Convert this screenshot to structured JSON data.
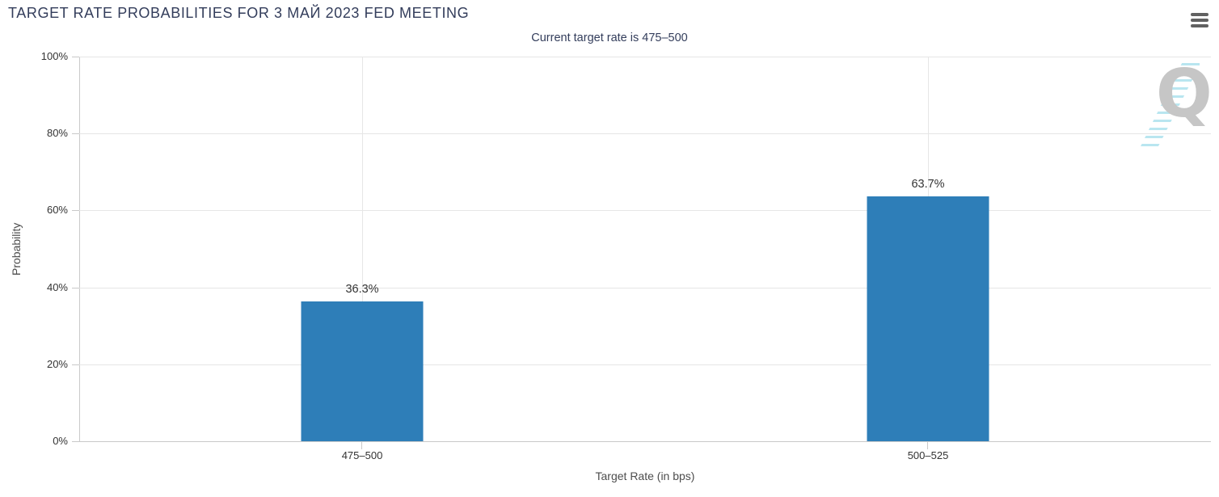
{
  "chart_data": {
    "type": "bar",
    "title": "TARGET RATE PROBABILITIES FOR 3 МАЙ 2023 FED MEETING",
    "subtitle": "Current target rate is 475–500",
    "categories": [
      "475–500",
      "500–525"
    ],
    "values": [
      36.3,
      63.7
    ],
    "data_labels": [
      "36.3%",
      "63.7%"
    ],
    "xlabel": "Target Rate (in bps)",
    "ylabel": "Probability",
    "ylim": [
      0,
      100
    ],
    "yticks": [
      0,
      20,
      40,
      60,
      80,
      100
    ],
    "ytick_labels_top_to_bottom": [
      "100%",
      "80%",
      "60%",
      "40%",
      "20%",
      "0%"
    ],
    "grid": true,
    "legend": "none",
    "bar_color": "#2e7eb8",
    "title_color": "#333d5b",
    "watermark_letter": "Q",
    "watermark_color": "#c6c6c6",
    "watermark_dash_color": "#b9e6f0"
  },
  "menu": {
    "icon": "hamburger-icon"
  }
}
